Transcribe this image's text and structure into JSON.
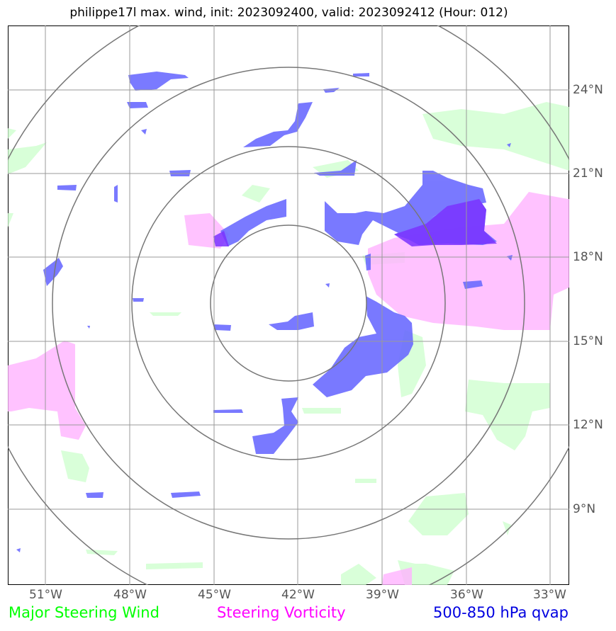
{
  "title": "philippe17l max. wind, init: 2023092400, valid: 2023092412 (Hour: 012)",
  "lon_ticks": [
    "51°W",
    "48°W",
    "45°W",
    "42°W",
    "39°W",
    "36°W",
    "33°W"
  ],
  "lat_ticks": [
    "24°N",
    "21°N",
    "18°N",
    "15°N",
    "12°N",
    "9°N"
  ],
  "legend": {
    "wind": "Major Steering Wind",
    "vorticity": "Steering Vorticity",
    "qvap": "500-850 hPa qvap"
  },
  "colors": {
    "wind": "#00ff00",
    "vorticity": "#ff00ff",
    "qvap": "#0000e0",
    "wind_fill": "#ccffcc",
    "vorticity_fill": "#ffb3ff",
    "qvap_fill": "#6b6bff",
    "grid": "#999999",
    "range_rings": "#777777"
  },
  "range_rings_count": 4
}
